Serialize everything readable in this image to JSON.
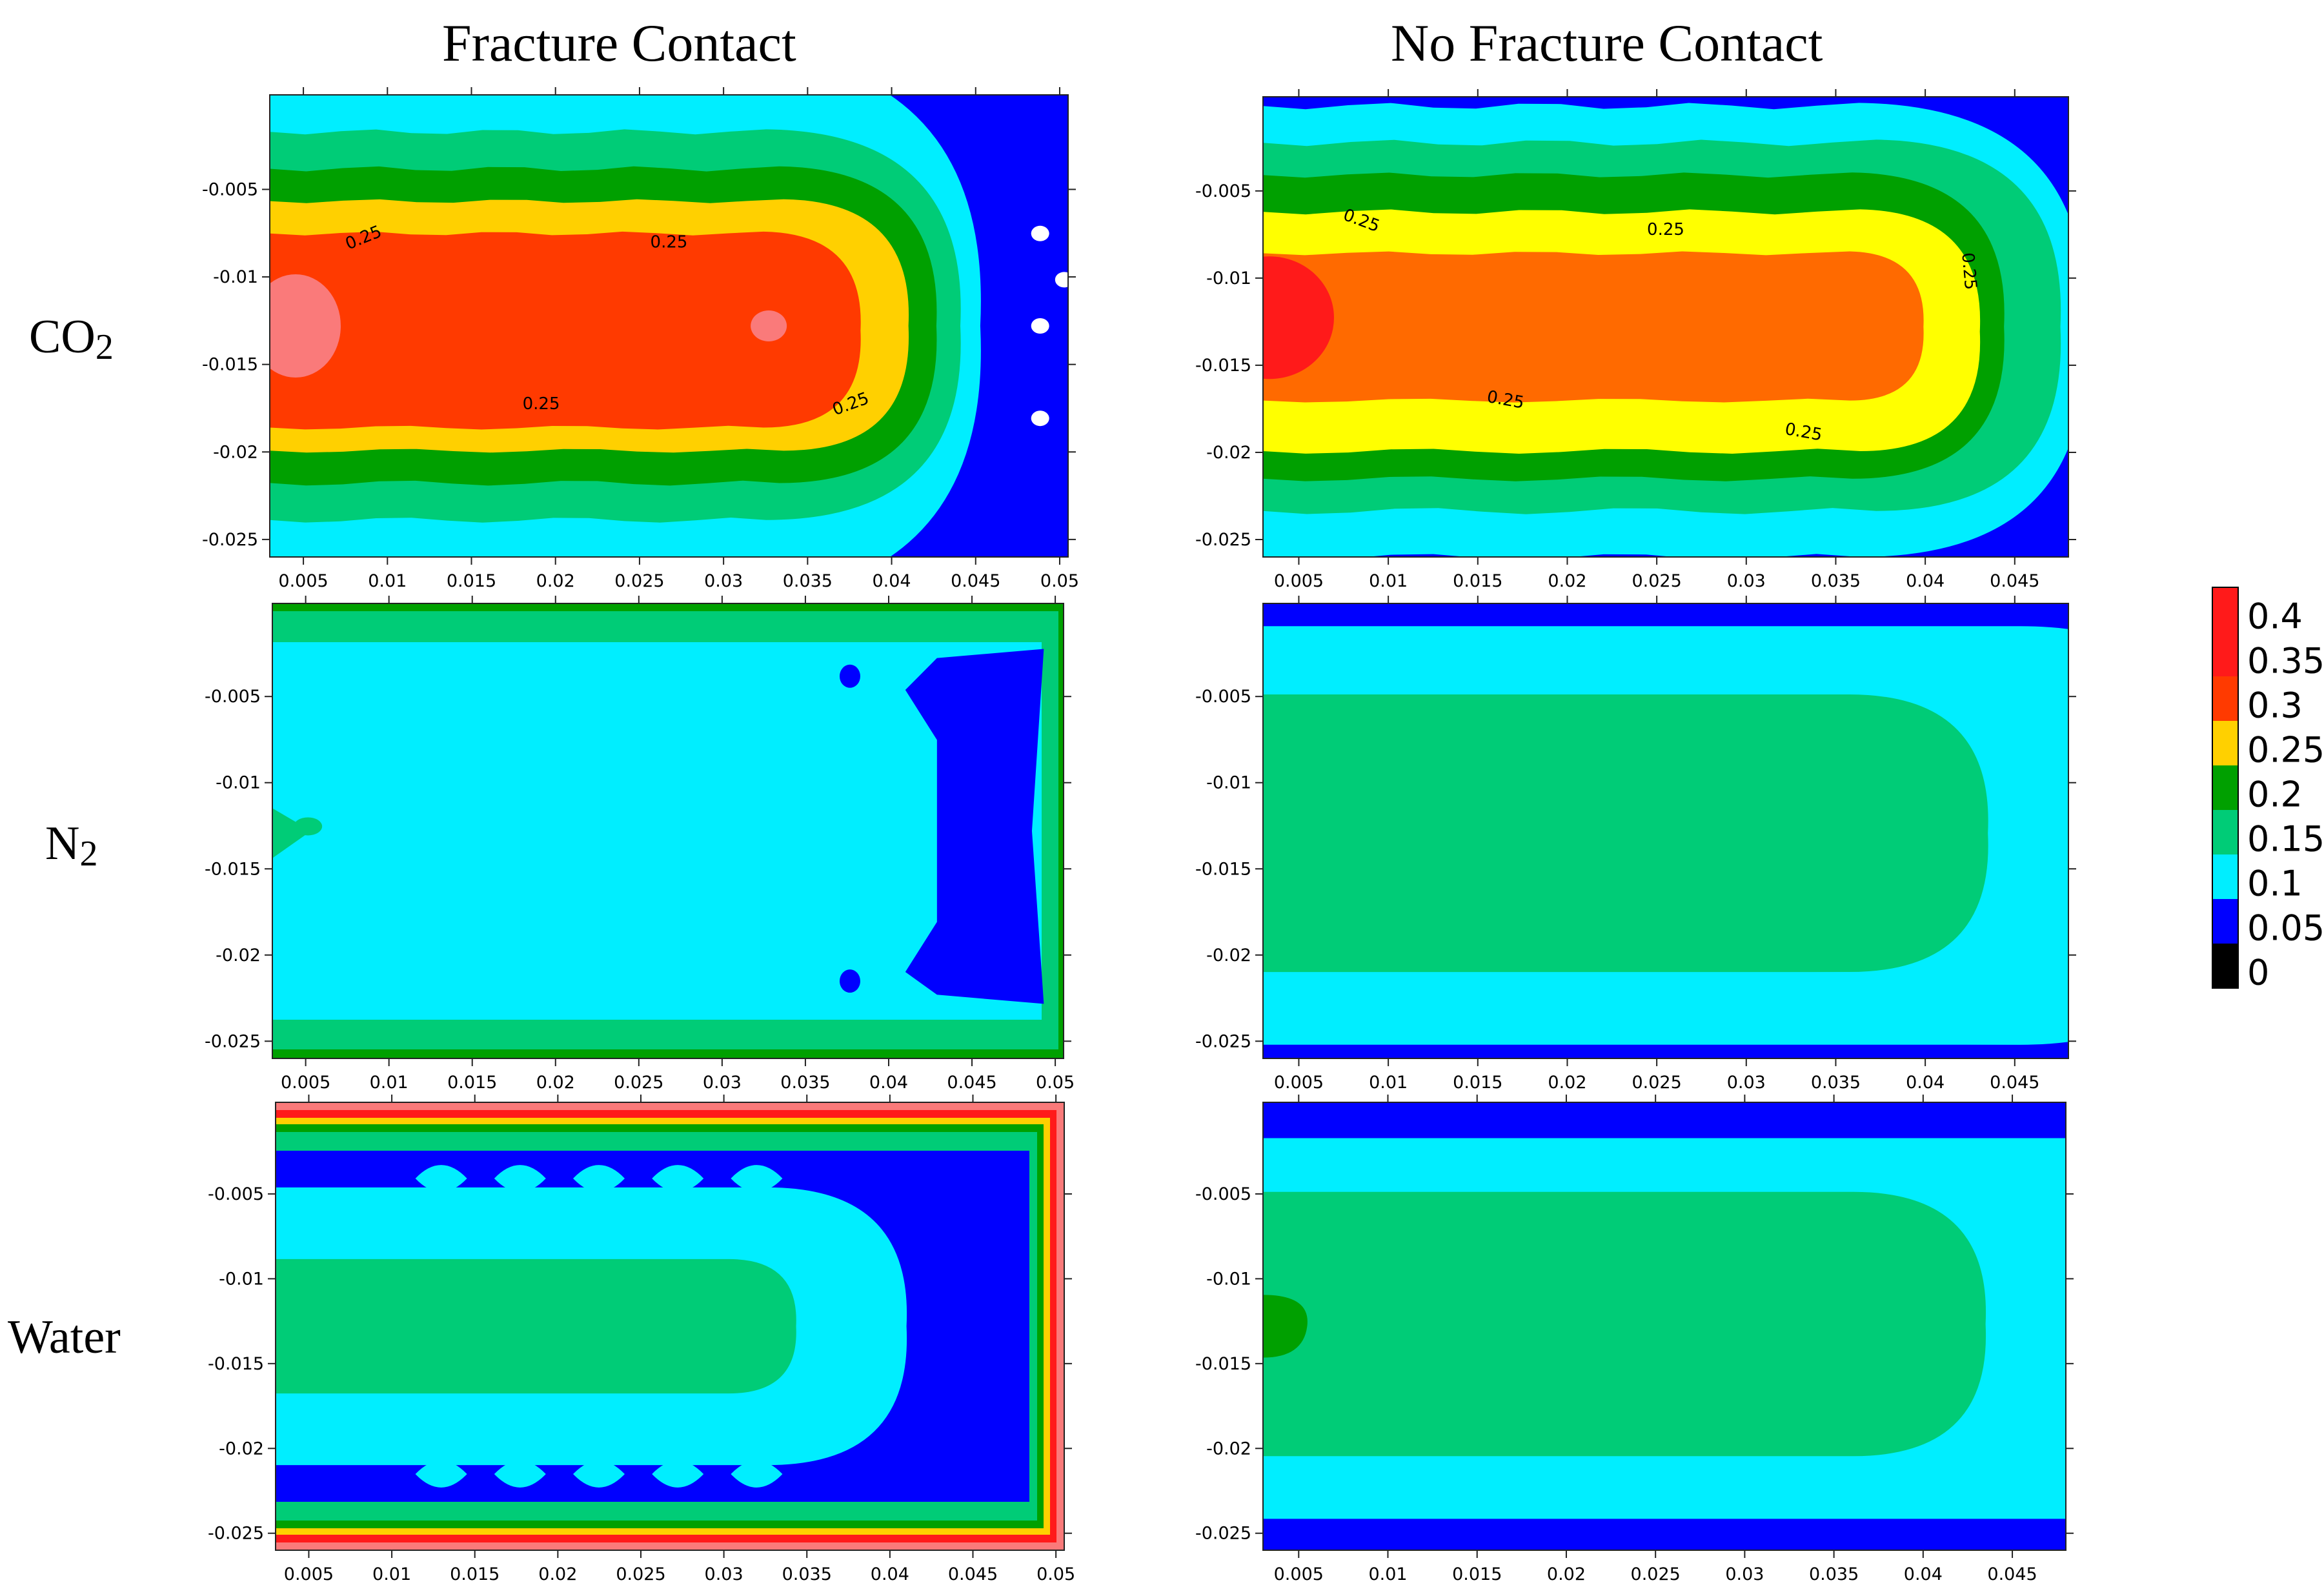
{
  "headings": {
    "left": "Fracture Contact",
    "right": "No Fracture Contact"
  },
  "rows": [
    {
      "main": "CO",
      "sub": "2"
    },
    {
      "main": "N",
      "sub": "2"
    },
    {
      "main": "Water",
      "sub": ""
    }
  ],
  "colors": {
    "red": "#ff1a1a",
    "salmon": "#fa7a7a",
    "red_orange": "#ff3a00",
    "orange": "#ff6a00",
    "yellow": "#ffff00",
    "gold": "#ffd000",
    "green": "#00a000",
    "green_light": "#00cc77",
    "cyan": "#00eeff",
    "blue": "#0000ff",
    "black": "#000000"
  },
  "chart_data": {
    "type": "heatmap",
    "colorbar": {
      "ticks": [
        "0.4",
        "0.35",
        "0.3",
        "0.25",
        "0.2",
        "0.15",
        "0.1",
        "0.05",
        "0"
      ],
      "colors": [
        "#ff1a1a",
        "#ff1a1a",
        "#ff3a00",
        "#ffd000",
        "#00a000",
        "#00cc77",
        "#00eeff",
        "#0000ff",
        "#000000"
      ]
    },
    "x_ticks_left": [
      "0.005",
      "0.01",
      "0.015",
      "0.02",
      "0.025",
      "0.03",
      "0.035",
      "0.04",
      "0.045",
      "0.05"
    ],
    "x_ticks_right": [
      "0.005",
      "0.01",
      "0.015",
      "0.02",
      "0.025",
      "0.03",
      "0.035",
      "0.04",
      "0.045"
    ],
    "y_ticks": [
      "-0.005",
      "-0.01",
      "-0.015",
      "-0.02",
      "-0.025"
    ],
    "xlim_left": [
      0.003,
      0.0505
    ],
    "xlim_right": [
      0.003,
      0.048
    ],
    "ylim": [
      -0.026,
      0.0004
    ],
    "contour_label": "0.25",
    "panels": [
      {
        "col": "left",
        "row": "CO2",
        "background": "#0000ff",
        "core": "#ff3a00",
        "contour_labels": 4
      },
      {
        "col": "right",
        "row": "CO2",
        "background": "#0000ff",
        "core": "#ff6a00",
        "contour_labels": 5
      },
      {
        "col": "left",
        "row": "N2",
        "background": "#00eeff"
      },
      {
        "col": "right",
        "row": "N2",
        "background": "#00eeff",
        "core": "#00cc77"
      },
      {
        "col": "left",
        "row": "Water",
        "background": "#00eeff",
        "core": "#00cc77"
      },
      {
        "col": "right",
        "row": "Water",
        "background": "#00eeff",
        "core": "#00cc77"
      }
    ]
  }
}
